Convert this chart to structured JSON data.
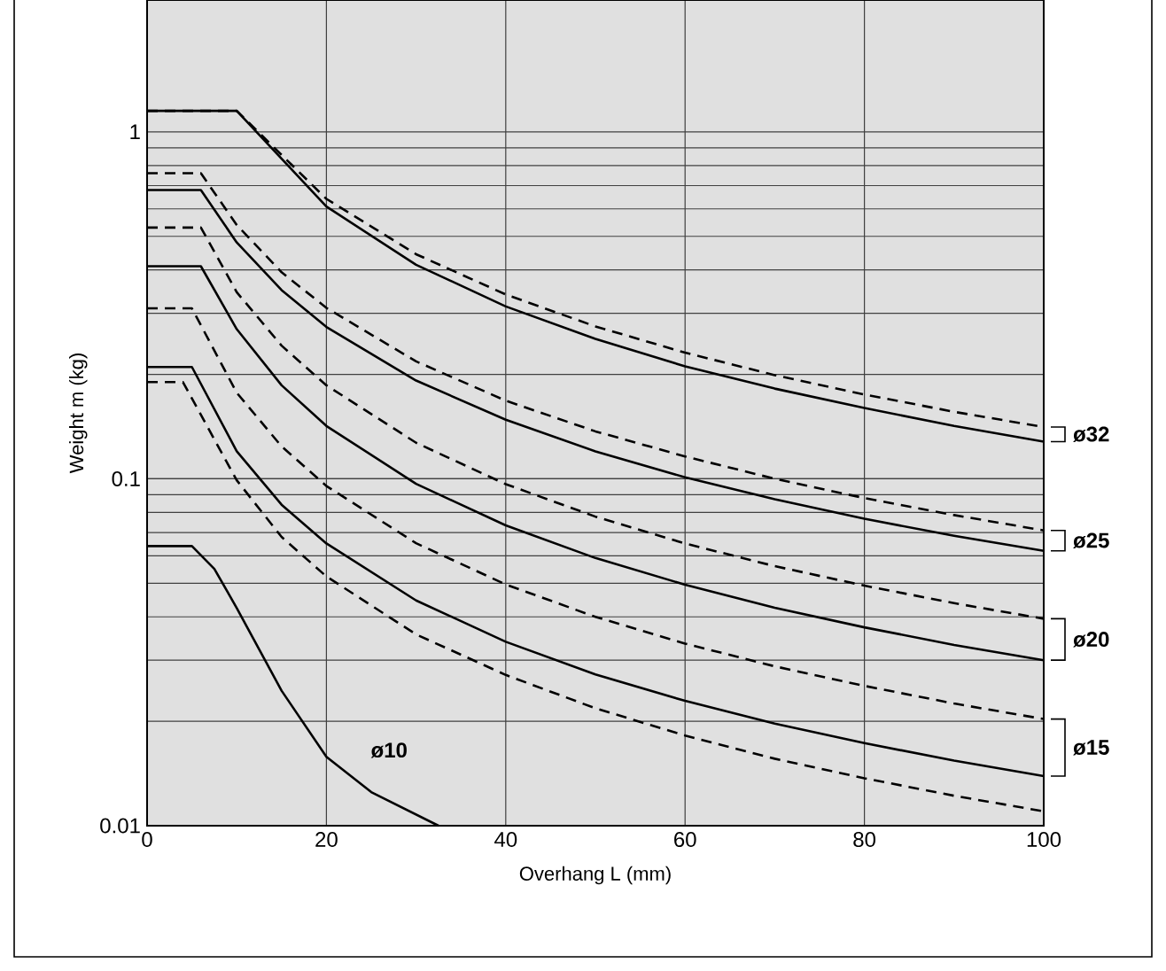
{
  "chart_data": {
    "type": "line",
    "xlabel": "Overhang L (mm)",
    "ylabel": "Weight m (kg)",
    "xlim": [
      0,
      100
    ],
    "xticks": [
      0,
      20,
      40,
      60,
      80,
      100
    ],
    "ylim": [
      0.01,
      2.4
    ],
    "yticks": [
      0.01,
      0.1,
      1
    ],
    "log": "y",
    "grid": true,
    "marker": "none",
    "legend": "right",
    "series": [
      {
        "color": "#000000",
        "line_style": "dashed",
        "x": [
          0,
          10,
          20,
          30,
          40,
          50,
          60,
          70,
          80,
          90,
          100
        ],
        "values": [
          1.15,
          1.15,
          0.641,
          0.444,
          0.34,
          0.275,
          0.231,
          0.199,
          0.175,
          0.156,
          0.141
        ]
      },
      {
        "name": "ø32",
        "color": "#000000",
        "line_style": "solid",
        "x": [
          0,
          10,
          20,
          30,
          40,
          50,
          60,
          70,
          80,
          90,
          100
        ],
        "values": [
          1.15,
          1.15,
          0.609,
          0.414,
          0.314,
          0.253,
          0.211,
          0.182,
          0.16,
          0.142,
          0.128
        ]
      },
      {
        "color": "#000000",
        "line_style": "dashed",
        "x": [
          0,
          6,
          10,
          15,
          20,
          30,
          40,
          50,
          60,
          70,
          80,
          90,
          100
        ],
        "values": [
          0.76,
          0.76,
          0.539,
          0.394,
          0.311,
          0.218,
          0.168,
          0.137,
          0.116,
          0.1,
          0.088,
          0.0786,
          0.071
        ]
      },
      {
        "name": "ø25",
        "color": "#000000",
        "line_style": "solid",
        "x": [
          0,
          6,
          10,
          15,
          20,
          30,
          40,
          50,
          60,
          70,
          80,
          90,
          100
        ],
        "values": [
          0.68,
          0.68,
          0.48,
          0.35,
          0.274,
          0.192,
          0.148,
          0.12,
          0.101,
          0.0873,
          0.0767,
          0.0685,
          0.062
        ]
      },
      {
        "color": "#000000",
        "line_style": "dashed",
        "x": [
          0,
          6,
          10,
          15,
          20,
          30,
          40,
          50,
          60,
          70,
          80,
          90,
          100
        ],
        "values": [
          0.53,
          0.53,
          0.345,
          0.242,
          0.186,
          0.127,
          0.0965,
          0.0778,
          0.0651,
          0.056,
          0.0492,
          0.0438,
          0.0395
        ]
      },
      {
        "name": "ø20",
        "color": "#000000",
        "line_style": "solid",
        "x": [
          0,
          6,
          10,
          15,
          20,
          30,
          40,
          50,
          60,
          70,
          80,
          90,
          100
        ],
        "values": [
          0.41,
          0.41,
          0.27,
          0.186,
          0.142,
          0.0967,
          0.0734,
          0.0591,
          0.0495,
          0.0425,
          0.0373,
          0.0332,
          0.03
        ]
      },
      {
        "color": "#000000",
        "line_style": "dashed",
        "x": [
          0,
          5,
          10,
          15,
          20,
          30,
          40,
          50,
          60,
          70,
          80,
          90,
          100
        ],
        "values": [
          0.31,
          0.31,
          0.177,
          0.124,
          0.0953,
          0.0652,
          0.0496,
          0.04,
          0.0335,
          0.0288,
          0.0253,
          0.0225,
          0.0203
        ]
      },
      {
        "name": "ø15",
        "color": "#000000",
        "line_style": "solid",
        "x": [
          0,
          5,
          10,
          15,
          20,
          30,
          40,
          50,
          60,
          70,
          80,
          90,
          100
        ],
        "values": [
          0.21,
          0.21,
          0.12,
          0.0842,
          0.0651,
          0.0446,
          0.0339,
          0.0273,
          0.0229,
          0.0197,
          0.0173,
          0.0154,
          0.0139
        ]
      },
      {
        "color": "#000000",
        "line_style": "dashed",
        "x": [
          0,
          4,
          10,
          15,
          20,
          30,
          40,
          50,
          60,
          70,
          80,
          90,
          100
        ],
        "values": [
          0.19,
          0.19,
          0.099,
          0.068,
          0.0523,
          0.0356,
          0.0272,
          0.0218,
          0.0182,
          0.0156,
          0.0137,
          0.0122,
          0.011
        ]
      },
      {
        "color": "#000000",
        "line_style": "solid",
        "x": [
          0,
          5,
          7.5,
          10,
          15,
          20,
          25,
          32.5
        ],
        "values": [
          0.064,
          0.064,
          0.055,
          0.0424,
          0.0245,
          0.0158,
          0.0125,
          0.01
        ]
      }
    ],
    "annotations": [
      {
        "text": "ø10",
        "x": 27,
        "y": 0.0165
      }
    ]
  }
}
